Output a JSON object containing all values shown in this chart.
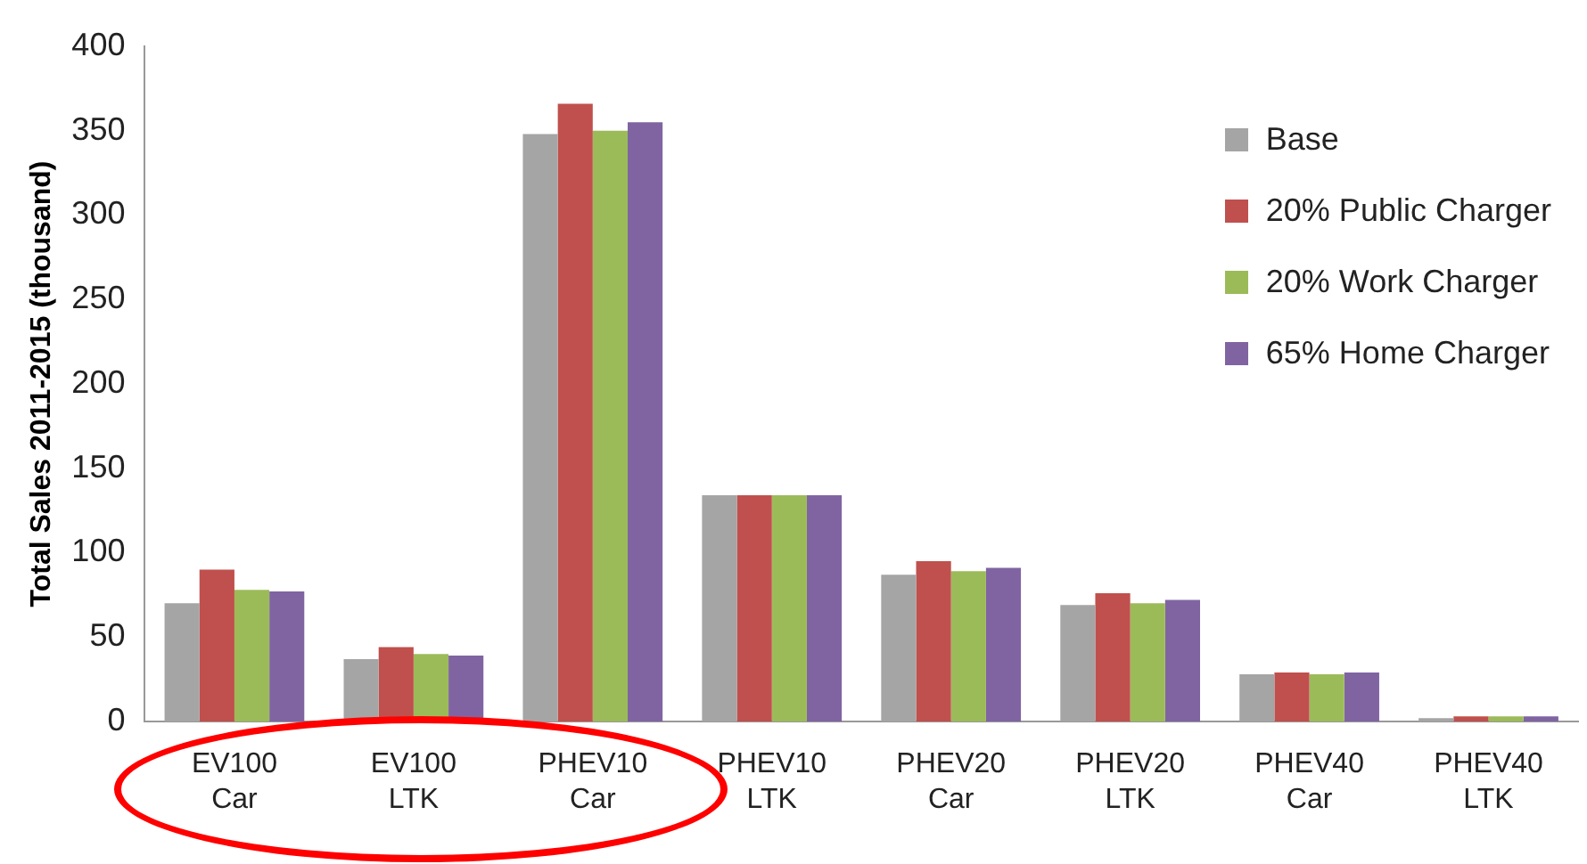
{
  "chart_data": {
    "type": "bar",
    "ylabel": "Total Sales 2011-2015 (thousand)",
    "categories": [
      "EV100 Car",
      "EV100 LTK",
      "PHEV10 Car",
      "PHEV10 LTK",
      "PHEV20 Car",
      "PHEV20 LTK",
      "PHEV40 Car",
      "PHEV40 LTK"
    ],
    "series": [
      {
        "name": "Base",
        "color": "#a5a5a5",
        "values": [
          70,
          37,
          348,
          134,
          87,
          69,
          28,
          2
        ]
      },
      {
        "name": "20% Public Charger",
        "color": "#c0504d",
        "values": [
          90,
          44,
          366,
          134,
          95,
          76,
          29,
          3
        ]
      },
      {
        "name": "20% Work Charger",
        "color": "#9bbb59",
        "values": [
          78,
          40,
          350,
          134,
          89,
          70,
          28,
          3
        ]
      },
      {
        "name": "65% Home Charger",
        "color": "#8064a2",
        "values": [
          77,
          39,
          355,
          134,
          91,
          72,
          29,
          3
        ]
      }
    ],
    "ylim": [
      0,
      400
    ],
    "yticks": [
      0,
      50,
      100,
      150,
      200,
      250,
      300,
      350,
      400
    ],
    "grid": false,
    "legend": "top right"
  }
}
